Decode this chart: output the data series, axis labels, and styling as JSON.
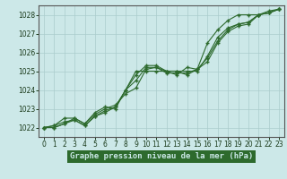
{
  "title": "Graphe pression niveau de la mer (hPa)",
  "bg_color": "#cce8e8",
  "plot_bg_color": "#cce8e8",
  "grid_color": "#aacccc",
  "line_color": "#2d6a2d",
  "marker": "+",
  "xlim": [
    -0.5,
    23.5
  ],
  "ylim": [
    1021.5,
    1028.5
  ],
  "yticks": [
    1022,
    1023,
    1024,
    1025,
    1026,
    1027,
    1028
  ],
  "xticks": [
    0,
    1,
    2,
    3,
    4,
    5,
    6,
    7,
    8,
    9,
    10,
    11,
    12,
    13,
    14,
    15,
    16,
    17,
    18,
    19,
    20,
    21,
    22,
    23
  ],
  "xlabel_bg": "#2d6a2d",
  "xlabel_color": "#cce8e8",
  "series": [
    [
      1022.0,
      1022.0,
      1022.2,
      1022.4,
      1022.1,
      1022.6,
      1022.9,
      1023.1,
      1024.0,
      1024.8,
      1025.3,
      1025.3,
      1025.0,
      1025.0,
      1024.8,
      1025.1,
      1025.5,
      1026.5,
      1027.1,
      1027.4,
      1027.5,
      1028.0,
      1028.1,
      1028.3
    ],
    [
      1022.0,
      1022.0,
      1022.2,
      1022.5,
      1022.2,
      1022.7,
      1023.0,
      1023.2,
      1023.8,
      1024.1,
      1025.1,
      1025.2,
      1024.9,
      1024.9,
      1024.9,
      1025.1,
      1025.7,
      1026.6,
      1027.2,
      1027.5,
      1027.6,
      1028.0,
      1028.1,
      1028.3
    ],
    [
      1022.0,
      1022.1,
      1022.5,
      1022.5,
      1022.2,
      1022.8,
      1023.1,
      1023.0,
      1024.0,
      1025.0,
      1025.0,
      1025.0,
      1025.0,
      1024.8,
      1025.2,
      1025.1,
      1026.5,
      1027.2,
      1027.7,
      1028.0,
      1028.0,
      1028.0,
      1028.2,
      1028.3
    ],
    [
      1022.0,
      1022.1,
      1022.3,
      1022.4,
      1022.1,
      1022.6,
      1022.8,
      1023.1,
      1024.0,
      1024.5,
      1025.2,
      1025.2,
      1025.0,
      1025.0,
      1025.0,
      1025.0,
      1025.8,
      1026.8,
      1027.3,
      1027.5,
      1027.6,
      1028.0,
      1028.1,
      1028.3
    ]
  ]
}
